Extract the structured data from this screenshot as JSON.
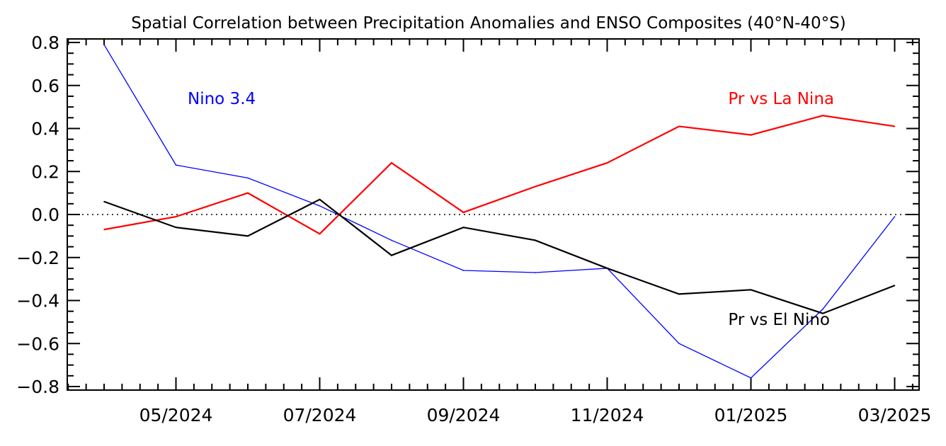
{
  "chart_data": {
    "type": "line",
    "title": "Spatial Correlation between Precipitation Anomalies and ENSO Composites (40°N-40°S)",
    "xlabel": "",
    "ylabel": "",
    "x": [
      "04/2024",
      "05/2024",
      "06/2024",
      "07/2024",
      "08/2024",
      "09/2024",
      "10/2024",
      "11/2024",
      "12/2024",
      "01/2025",
      "02/2025",
      "03/2025"
    ],
    "x_tick_labels": [
      "05/2024",
      "07/2024",
      "09/2024",
      "11/2024",
      "01/2025",
      "03/2025"
    ],
    "ylim": [
      -0.8,
      0.8
    ],
    "y_tick_labels": [
      "0.8",
      "0.6",
      "0.4",
      "0.2",
      "0.0",
      "-0.2",
      "-0.4",
      "-0.6",
      "-0.8"
    ],
    "zero_line": "dotted",
    "grid": false,
    "series": [
      {
        "name": "Nino 3.4",
        "color": "#0000ff",
        "values": [
          0.79,
          0.23,
          0.17,
          0.04,
          -0.12,
          -0.26,
          -0.27,
          -0.25,
          -0.6,
          -0.76,
          -0.44,
          -0.01
        ]
      },
      {
        "name": "Pr vs La Nina",
        "color": "#ff0000",
        "values": [
          -0.07,
          -0.01,
          0.1,
          -0.09,
          0.24,
          0.01,
          0.13,
          0.24,
          0.41,
          0.37,
          0.46,
          0.41
        ]
      },
      {
        "name": "Pr vs El Nino",
        "color": "#000000",
        "values": [
          0.06,
          -0.06,
          -0.1,
          0.07,
          -0.19,
          -0.06,
          -0.12,
          -0.25,
          -0.37,
          -0.35,
          -0.46,
          -0.33
        ]
      }
    ]
  }
}
